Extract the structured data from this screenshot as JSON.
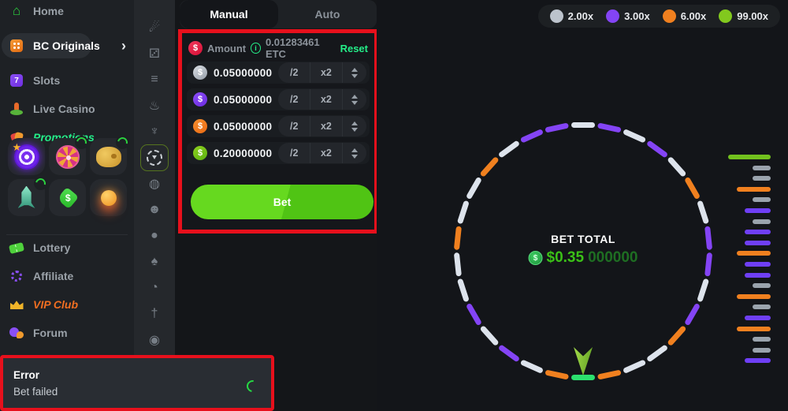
{
  "sidebar": {
    "items": [
      {
        "label": "Home"
      },
      {
        "label": "BC Originals"
      },
      {
        "label": "Slots"
      },
      {
        "label": "Live Casino"
      },
      {
        "label": "Promotions"
      },
      {
        "label": "Lottery"
      },
      {
        "label": "Affiliate"
      },
      {
        "label": "VIP Club"
      },
      {
        "label": "Forum"
      }
    ],
    "chevron": "›"
  },
  "rail": {
    "active_index": 5,
    "icons": [
      {
        "name": "crash-icon",
        "glyph": "☄"
      },
      {
        "name": "dice-icon",
        "glyph": "⚂"
      },
      {
        "name": "stack-icon",
        "glyph": "≡"
      },
      {
        "name": "flame-icon",
        "glyph": "♨"
      },
      {
        "name": "saucer-icon",
        "glyph": "♆"
      },
      {
        "name": "wheel-icon",
        "glyph": "◎"
      },
      {
        "name": "coins-icon",
        "glyph": "◍"
      },
      {
        "name": "mask-icon",
        "glyph": "☻"
      },
      {
        "name": "billiard-icon",
        "glyph": "●"
      },
      {
        "name": "cards-icon",
        "glyph": "♠"
      },
      {
        "name": "timer-icon",
        "glyph": "◔"
      },
      {
        "name": "sword-icon",
        "glyph": "†"
      },
      {
        "name": "eye-icon",
        "glyph": "◉"
      }
    ]
  },
  "bet_panel": {
    "tab_manual": "Manual",
    "tab_auto": "Auto",
    "amount_label": "Amount",
    "info_icon": "i",
    "balance": "0.01283461 ETC",
    "reset_label": "Reset",
    "half_label": "/2",
    "double_label": "x2",
    "bet_label": "Bet",
    "rows": [
      {
        "coin": "gray",
        "value": "0.05000000"
      },
      {
        "coin": "purple",
        "value": "0.05000000"
      },
      {
        "coin": "orange",
        "value": "0.05000000"
      },
      {
        "coin": "green",
        "value": "0.20000000"
      }
    ]
  },
  "game": {
    "multipliers": [
      {
        "color": "#bcc3cc",
        "label": "2.00x"
      },
      {
        "color": "#8444f5",
        "label": "3.00x"
      },
      {
        "color": "#f0801f",
        "label": "6.00x"
      },
      {
        "color": "#82c91e",
        "label": "99.00x"
      }
    ],
    "bet_total_label": "BET TOTAL",
    "bet_total_main": "$0.35",
    "bet_total_zeros": "000000",
    "wheel": {
      "colors": {
        "w": "#dde3ec",
        "p": "#8444f5",
        "o": "#f0801f",
        "g": "#2be06e"
      },
      "segments": [
        "w",
        "p",
        "w",
        "p",
        "w",
        "o",
        "w",
        "p",
        "p",
        "w",
        "p",
        "o",
        "w",
        "w",
        "o",
        "g",
        "o",
        "w",
        "p",
        "w",
        "p",
        "w",
        "w",
        "o",
        "w",
        "w",
        "o",
        "w",
        "p",
        "p"
      ]
    },
    "history": {
      "colors": {
        "green": "#72c11e",
        "orange": "#f0801f",
        "purple": "#6f3ff5",
        "gray": "#9aa3ad"
      },
      "widths": {
        "green": 54,
        "orange": 43,
        "purple": 33,
        "gray": 23
      },
      "bars": [
        "green",
        "gray",
        "gray",
        "orange",
        "gray",
        "purple",
        "gray",
        "purple",
        "purple",
        "orange",
        "purple",
        "purple",
        "gray",
        "orange",
        "gray",
        "purple",
        "orange",
        "gray",
        "gray",
        "purple"
      ]
    }
  },
  "toast": {
    "title": "Error",
    "message": "Bet failed"
  }
}
